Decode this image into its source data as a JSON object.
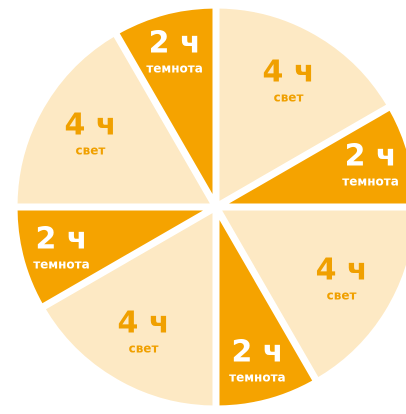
{
  "chart_data": {
    "type": "pie",
    "categories": [
      "свет",
      "темнота",
      "свет",
      "темнота",
      "свет",
      "темнота",
      "свет",
      "темнота"
    ],
    "values": [
      4,
      2,
      4,
      2,
      4,
      2,
      4,
      2
    ],
    "value_labels": [
      "4 ч",
      "2 ч",
      "4 ч",
      "2 ч",
      "4 ч",
      "2 ч",
      "4 ч",
      "2 ч"
    ],
    "colors": [
      "#fde9c4",
      "#f5a300",
      "#fde9c4",
      "#f5a300",
      "#fde9c4",
      "#f5a300",
      "#fde9c4",
      "#f5a300"
    ]
  }
}
